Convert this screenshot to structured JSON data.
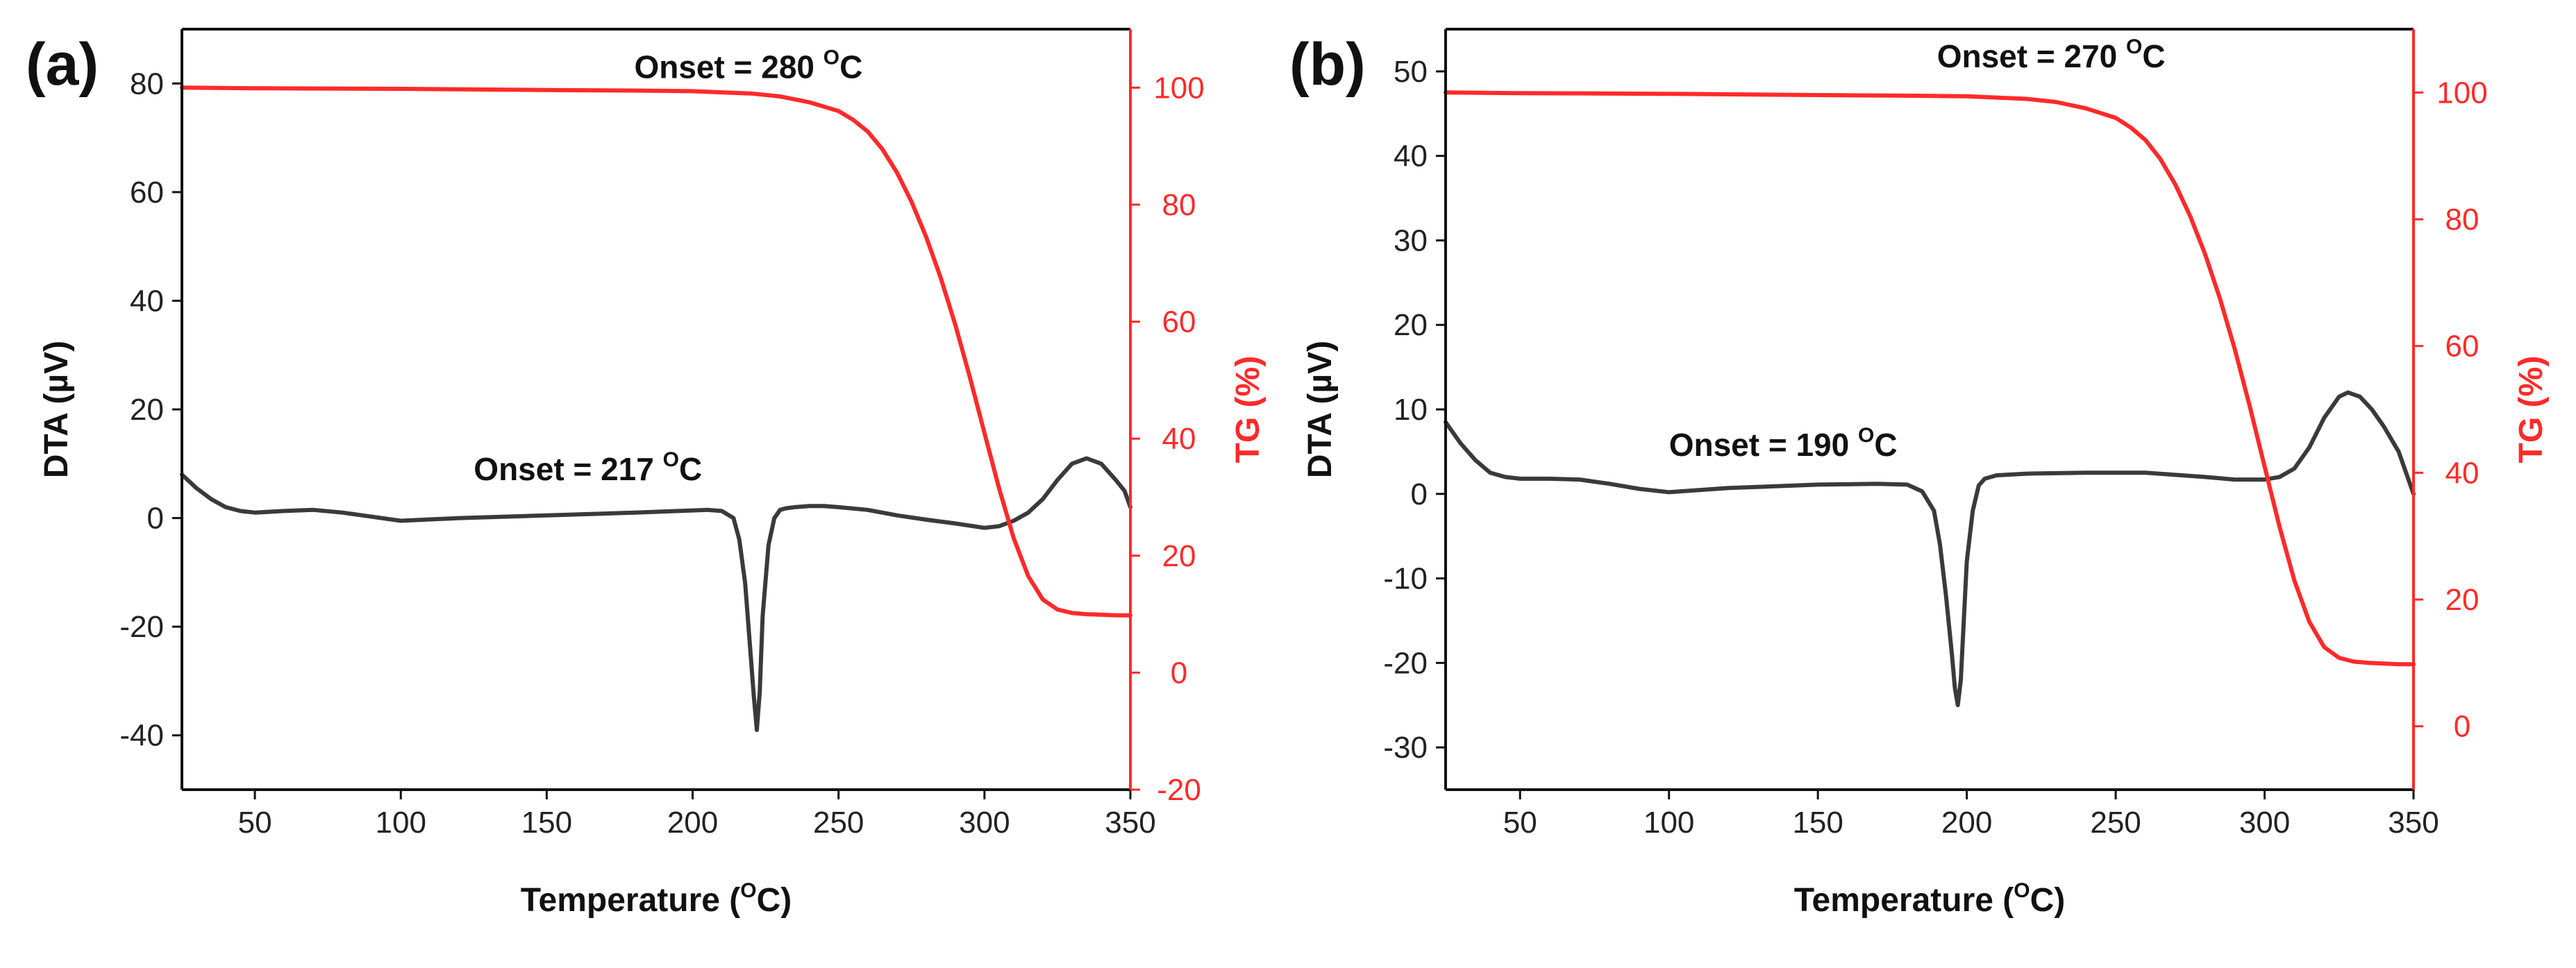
{
  "chart_data": [
    {
      "panel_label": "(a)",
      "type": "line",
      "xlabel": "Temperature (",
      "xlabel_sup": "O",
      "xlabel_end": "C)",
      "ylabel_left": "DTA (µV)",
      "ylabel_right": "TG (%)",
      "xlim": [
        25,
        350
      ],
      "ylim_left": [
        -50,
        90
      ],
      "ylim_right": [
        -20,
        110
      ],
      "xticks": [
        50,
        100,
        150,
        200,
        250,
        300,
        350
      ],
      "yticks_left": [
        -40,
        -20,
        0,
        20,
        40,
        60,
        80
      ],
      "yticks_right": [
        -20,
        0,
        20,
        40,
        60,
        80,
        100
      ],
      "annotations": [
        {
          "text": "Onset = 280 ",
          "sup": "O",
          "end": "C",
          "x": 180,
          "y": 81,
          "axis": "left"
        },
        {
          "text": "Onset = 217 ",
          "sup": "O",
          "end": "C",
          "x": 125,
          "y": 7,
          "axis": "left"
        }
      ],
      "series": [
        {
          "name": "DTA",
          "axis": "left",
          "color": "#3a3a3a",
          "x": [
            25,
            30,
            35,
            40,
            45,
            50,
            60,
            70,
            80,
            100,
            120,
            150,
            180,
            205,
            210,
            214,
            216,
            218,
            220,
            221,
            222,
            223,
            224,
            226,
            228,
            230,
            232,
            235,
            240,
            245,
            250,
            260,
            270,
            280,
            290,
            300,
            305,
            310,
            315,
            320,
            325,
            330,
            335,
            340,
            345,
            348,
            350
          ],
          "y": [
            8,
            5.5,
            3.5,
            2,
            1.3,
            1,
            1.3,
            1.5,
            1,
            -0.5,
            0,
            0.5,
            1,
            1.5,
            1.3,
            0,
            -4,
            -12,
            -26,
            -33,
            -39,
            -32,
            -18,
            -5,
            0,
            1.5,
            1.8,
            2,
            2.2,
            2.2,
            2,
            1.5,
            0.5,
            -0.3,
            -1,
            -1.8,
            -1.5,
            -0.5,
            1,
            3.5,
            7,
            10,
            11,
            10,
            7,
            5,
            2
          ]
        },
        {
          "name": "TG",
          "axis": "right",
          "color": "#ff2a2a",
          "x": [
            25,
            50,
            100,
            150,
            180,
            200,
            210,
            220,
            230,
            240,
            250,
            255,
            260,
            265,
            270,
            275,
            280,
            285,
            290,
            295,
            300,
            305,
            310,
            315,
            320,
            325,
            330,
            335,
            340,
            345,
            350
          ],
          "y": [
            100,
            99.9,
            99.8,
            99.6,
            99.5,
            99.4,
            99.2,
            99,
            98.5,
            97.5,
            96,
            94.5,
            92.5,
            89.5,
            85.5,
            80.5,
            74.5,
            67.5,
            59.5,
            50.5,
            41,
            31.5,
            23,
            16.5,
            12.5,
            10.8,
            10.2,
            10,
            9.9,
            9.8,
            9.8
          ]
        }
      ]
    },
    {
      "panel_label": "(b)",
      "type": "line",
      "xlabel": "Temperature (",
      "xlabel_sup": "O",
      "xlabel_end": "C)",
      "ylabel_left": "DTA (µV)",
      "ylabel_right": "TG (%)",
      "xlim": [
        25,
        350
      ],
      "ylim_left": [
        -35,
        55
      ],
      "ylim_right": [
        -10,
        110
      ],
      "xticks": [
        50,
        100,
        150,
        200,
        250,
        300,
        350
      ],
      "yticks_left": [
        -30,
        -20,
        -10,
        0,
        10,
        20,
        30,
        40,
        50
      ],
      "yticks_right": [
        0,
        20,
        40,
        60,
        80,
        100
      ],
      "annotations": [
        {
          "text": "Onset = 270 ",
          "sup": "O",
          "end": "C",
          "x": 190,
          "y": 50.5,
          "axis": "left"
        },
        {
          "text": "Onset = 190 ",
          "sup": "O",
          "end": "C",
          "x": 100,
          "y": 4.5,
          "axis": "left"
        }
      ],
      "series": [
        {
          "name": "DTA",
          "axis": "left",
          "color": "#3a3a3a",
          "x": [
            25,
            30,
            35,
            40,
            45,
            50,
            60,
            70,
            80,
            90,
            100,
            120,
            150,
            170,
            180,
            185,
            189,
            191,
            193,
            195,
            196,
            197,
            198,
            199,
            200,
            202,
            204,
            206,
            210,
            220,
            240,
            260,
            280,
            290,
            300,
            305,
            310,
            315,
            320,
            325,
            328,
            332,
            336,
            340,
            345,
            348,
            350
          ],
          "y": [
            8.5,
            6,
            4,
            2.5,
            2,
            1.8,
            1.8,
            1.7,
            1.2,
            0.6,
            0.2,
            0.7,
            1.1,
            1.2,
            1.1,
            0.3,
            -2,
            -6,
            -12,
            -19,
            -23,
            -25,
            -22,
            -15,
            -8,
            -2,
            1,
            1.8,
            2.2,
            2.4,
            2.5,
            2.5,
            2,
            1.7,
            1.7,
            2,
            3,
            5.5,
            9,
            11.5,
            12,
            11.5,
            10,
            8,
            5,
            2,
            0
          ]
        },
        {
          "name": "TG",
          "axis": "right",
          "color": "#ff2a2a",
          "x": [
            25,
            50,
            100,
            150,
            180,
            200,
            210,
            220,
            230,
            240,
            250,
            255,
            260,
            265,
            270,
            275,
            280,
            285,
            290,
            295,
            300,
            305,
            310,
            315,
            320,
            325,
            330,
            335,
            340,
            345,
            350
          ],
          "y": [
            100,
            99.9,
            99.8,
            99.6,
            99.5,
            99.4,
            99.2,
            99,
            98.5,
            97.5,
            96,
            94.5,
            92.5,
            89.5,
            85.5,
            80.5,
            74.5,
            67.5,
            59.5,
            50.5,
            41,
            31.5,
            23,
            16.5,
            12.5,
            10.8,
            10.2,
            10,
            9.9,
            9.8,
            9.8
          ]
        }
      ]
    }
  ]
}
